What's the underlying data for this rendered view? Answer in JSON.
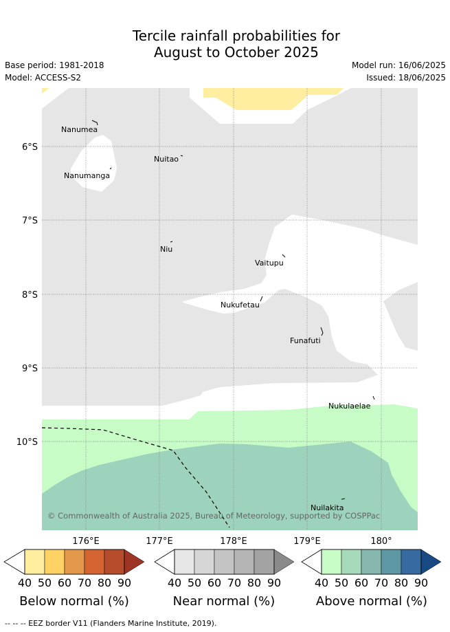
{
  "header": {
    "title_line1": "Tercile rainfall probabilities for",
    "title_line2": "August to October 2025",
    "base_period": "Base period: 1981-2018",
    "model": "Model: ACCESS-S2",
    "model_run": "Model run: 16/06/2025",
    "issued": "Issued: 18/06/2025"
  },
  "map": {
    "lat_labels": [
      "6°S",
      "7°S",
      "8°S",
      "9°S",
      "10°S"
    ],
    "lon_labels": [
      "176°E",
      "177°E",
      "178°E",
      "179°E",
      "180°"
    ],
    "islands": [
      "Nanumea",
      "Nuitao",
      "Nanumanga",
      "Niu",
      "Vaitupu",
      "Nukufetau",
      "Funafuti",
      "Nukulaelae",
      "Nuilakita"
    ],
    "copyright": "© Commonwealth of Australia 2025, Bureau of Meteorology, supported by COSPPac",
    "colors": {
      "near_normal": "#e6e6e6",
      "below_40": "#ffeda0",
      "above_40": "#c7fcc7",
      "above_50": "#9dd2bc"
    }
  },
  "legend": {
    "ticks": [
      "40",
      "50",
      "60",
      "70",
      "80",
      "90"
    ],
    "below": {
      "label": "Below normal (%)",
      "colors": [
        "#ffeda0",
        "#fed165",
        "#e3974a",
        "#d46432",
        "#b64c2c",
        "#9e3423"
      ]
    },
    "near": {
      "label": "Near normal (%)",
      "colors": [
        "#e6e6e6",
        "#d6d6d6",
        "#c4c4c4",
        "#b4b4b4",
        "#a3a3a3",
        "#8a8a8a"
      ]
    },
    "above": {
      "label": "Above normal (%)",
      "colors": [
        "#c7fcc7",
        "#a7dabb",
        "#87b8b0",
        "#5e98a4",
        "#376aa0",
        "#174a82"
      ]
    }
  },
  "footer": {
    "eez_note": "--  --  -- EEZ border V11 (Flanders Marine Institute, 2019)."
  }
}
